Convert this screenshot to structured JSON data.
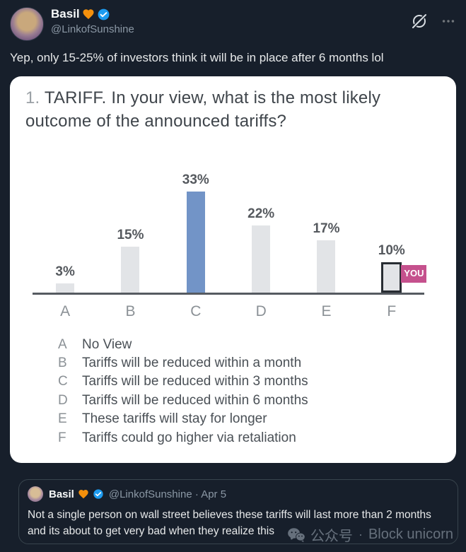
{
  "header": {
    "display_name": "Basil",
    "handle": "@LinkofSunshine",
    "icons": {
      "grok": "slashed-circle-grok",
      "more": "three-dots-menu"
    }
  },
  "tweet": {
    "text": "Yep, only 15-25% of investors think it will be in place after 6 months lol"
  },
  "card": {
    "title_number": "1.",
    "title_rest": " TARIFF. In your view, what is the most likely outcome of the announced tariffs?"
  },
  "chart_data": {
    "type": "bar",
    "title": "1. TARIFF. In your view, what is the most likely outcome of the announced tariffs?",
    "categories": [
      "A",
      "B",
      "C",
      "D",
      "E",
      "F"
    ],
    "values": [
      3,
      15,
      33,
      22,
      17,
      10
    ],
    "value_labels": [
      "3%",
      "15%",
      "33%",
      "22%",
      "17%",
      "10%"
    ],
    "xlabel": "",
    "ylabel": "",
    "ylim": [
      0,
      35
    ],
    "grid": false,
    "bar_color": "#e2e4e7",
    "highlight_index": 2,
    "highlight_color": "#7294c7",
    "outlined_index": 5,
    "outline_color": "#282d33",
    "badge_label": "YOU",
    "badge_color": "#c5518d",
    "legend": [
      {
        "key": "A",
        "label": "No View"
      },
      {
        "key": "B",
        "label": "Tariffs will be reduced within a month"
      },
      {
        "key": "C",
        "label": "Tariffs will be reduced within 3 months"
      },
      {
        "key": "D",
        "label": "Tariffs will be reduced within 6 months"
      },
      {
        "key": "E",
        "label": "These tariffs will stay for longer"
      },
      {
        "key": "F",
        "label": "Tariffs could go higher via retaliation"
      }
    ]
  },
  "quote": {
    "display_name": "Basil",
    "handle": "@LinkofSunshine",
    "separator": "·",
    "date": "Apr 5",
    "text": "Not a single person on wall street believes these tariffs will last more than 2 months and its about to get very bad when they realize this"
  },
  "watermark": {
    "icon": "wechat-bubbles",
    "text_cn": "公众号",
    "separator": "·",
    "text_en": "Block unicorn"
  },
  "colors": {
    "background": "#171f2b",
    "card_bg": "#ffffff",
    "accent_blue": "#7294c7",
    "badge_pink": "#c5518d",
    "verified_blue": "#1d9bf0",
    "heart_orange": "#f4900c"
  }
}
